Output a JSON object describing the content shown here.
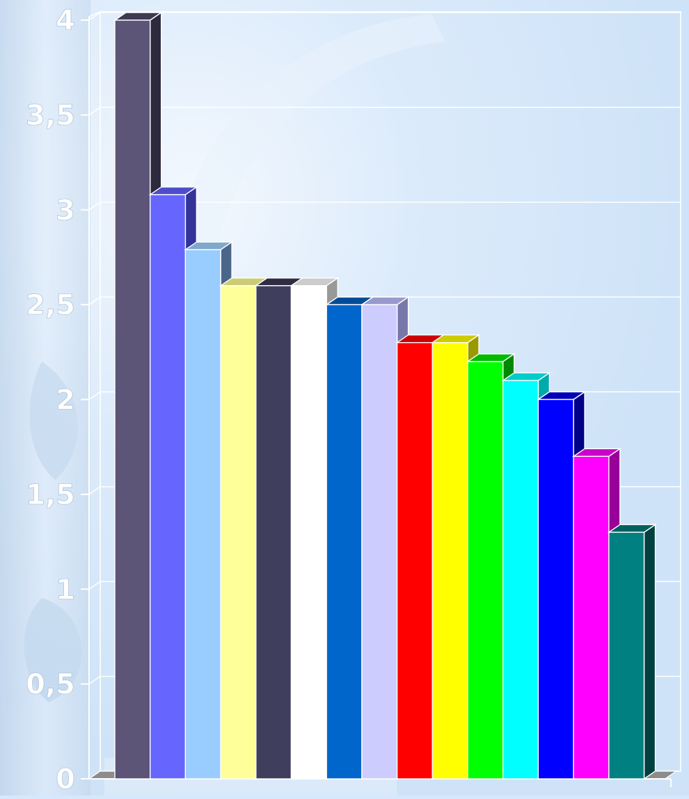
{
  "chart_data": {
    "type": "bar",
    "style": "3d",
    "title": "",
    "xlabel": "",
    "ylabel": "",
    "ylim": [
      0,
      4
    ],
    "yticks": [
      "0",
      "0,5",
      "1",
      "1,5",
      "2",
      "2,5",
      "3",
      "3,5",
      "4"
    ],
    "grid": true,
    "legend": "none",
    "values": [
      4.0,
      3.08,
      2.79,
      2.6,
      2.6,
      2.6,
      2.5,
      2.5,
      2.3,
      2.3,
      2.2,
      2.1,
      2.0,
      1.7,
      1.3
    ],
    "colors": [
      "#5c5577",
      "#6666ff",
      "#99ccff",
      "#ffff99",
      "#3f3e5c",
      "#ffffff",
      "#0066cc",
      "#ccccff",
      "#ff0000",
      "#ffff00",
      "#00ff00",
      "#00ffff",
      "#0000ff",
      "#ff00ff",
      "#008080"
    ],
    "side_colors": [
      "#2d2a3d",
      "#333399",
      "#4a6688",
      "#bdbd66",
      "#1f1e2e",
      "#999999",
      "#003f80",
      "#7777aa",
      "#990000",
      "#999900",
      "#008800",
      "#00aaaa",
      "#000088",
      "#990099",
      "#004040"
    ],
    "top_colors": [
      "#3d3a52",
      "#4d4dcc",
      "#7fa8cc",
      "#cccc77",
      "#2e2d44",
      "#cccccc",
      "#004c99",
      "#9999cc",
      "#cc0000",
      "#cccc00",
      "#00bb00",
      "#00cccc",
      "#0000bb",
      "#cc00cc",
      "#006060"
    ]
  }
}
